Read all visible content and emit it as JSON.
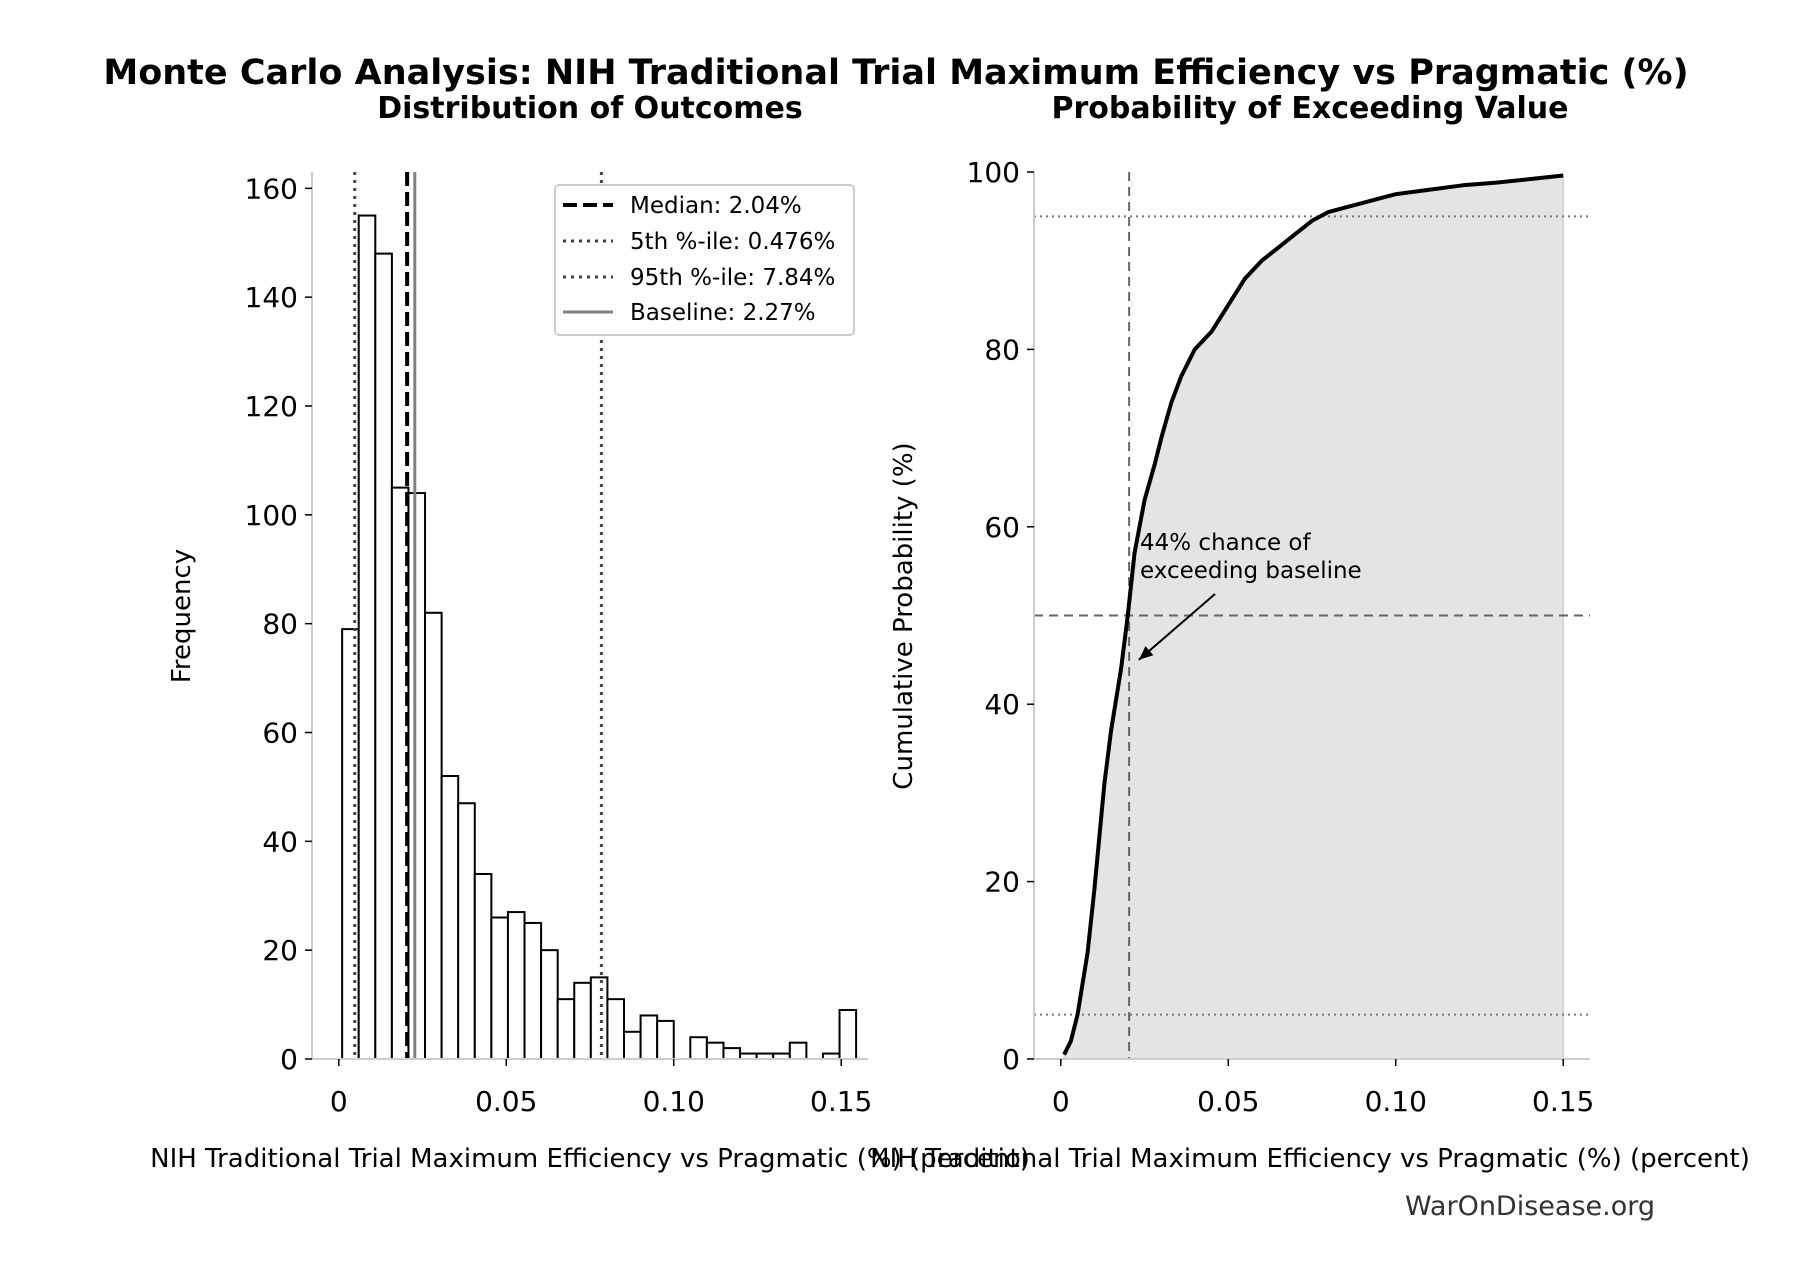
{
  "figure": {
    "suptitle": "Monte Carlo Analysis: NIH Traditional Trial Maximum Efficiency vs Pragmatic (%)",
    "watermark": "WarOnDisease.org"
  },
  "chart_data": [
    {
      "type": "bar",
      "title": "Distribution of Outcomes",
      "xlabel": "NIH Traditional Trial Maximum Efficiency vs Pragmatic (%) (percent)",
      "ylabel": "Frequency",
      "xlim": [
        -0.008,
        0.158
      ],
      "ylim": [
        0,
        163
      ],
      "xticks": [
        0,
        0.05,
        0.1,
        0.15
      ],
      "xtick_labels": [
        "0",
        "0.05",
        "0.10",
        "0.15"
      ],
      "yticks": [
        0,
        20,
        40,
        60,
        80,
        100,
        120,
        140,
        160
      ],
      "ytick_labels": [
        "0",
        "20",
        "40",
        "60",
        "80",
        "100",
        "120",
        "140",
        "160"
      ],
      "bin_start": 0.001,
      "bin_width": 0.00495,
      "values": [
        79,
        155,
        148,
        105,
        104,
        82,
        52,
        47,
        34,
        26,
        27,
        25,
        20,
        11,
        14,
        15,
        11,
        5,
        8,
        7,
        0,
        4,
        3,
        2,
        1,
        1,
        1,
        3,
        0,
        1,
        9
      ],
      "bar_fill": "#ffffff",
      "bar_edge": "#000000",
      "lines": [
        {
          "name": "median",
          "x": 0.0204,
          "style": "dashed",
          "color": "#000000"
        },
        {
          "name": "p5",
          "x": 0.00476,
          "style": "dotted",
          "color": "#444444"
        },
        {
          "name": "p95",
          "x": 0.0784,
          "style": "dotted",
          "color": "#444444"
        },
        {
          "name": "baseline",
          "x": 0.0227,
          "style": "solid",
          "color": "#808080"
        }
      ],
      "legend": {
        "position": "upper right",
        "entries": [
          {
            "label": "Median: 2.04%",
            "style": "dashed",
            "color": "#000000"
          },
          {
            "label": "5th %-ile: 0.476%",
            "style": "dotted",
            "color": "#444444"
          },
          {
            "label": "95th %-ile: 7.84%",
            "style": "dotted",
            "color": "#444444"
          },
          {
            "label": "Baseline: 2.27%",
            "style": "solid",
            "color": "#808080"
          }
        ]
      }
    },
    {
      "type": "line",
      "title": "Probability of Exceeding Value",
      "xlabel": "NIH Traditional Trial Maximum Efficiency vs Pragmatic (%) (percent)",
      "ylabel": "Cumulative Probability (%)",
      "xlim": [
        -0.008,
        0.158
      ],
      "ylim": [
        0,
        100
      ],
      "xticks": [
        0,
        0.05,
        0.1,
        0.15
      ],
      "xtick_labels": [
        "0",
        "0.05",
        "0.10",
        "0.15"
      ],
      "yticks": [
        0,
        20,
        40,
        60,
        80,
        100
      ],
      "ytick_labels": [
        "0",
        "20",
        "40",
        "60",
        "80",
        "100"
      ],
      "series": [
        {
          "x": [
            0.001,
            0.003,
            0.005,
            0.008,
            0.01,
            0.013,
            0.015,
            0.018,
            0.02,
            0.022,
            0.025,
            0.028,
            0.03,
            0.033,
            0.036,
            0.04,
            0.045,
            0.05,
            0.055,
            0.06,
            0.065,
            0.07,
            0.075,
            0.08,
            0.085,
            0.09,
            0.095,
            0.1,
            0.11,
            0.12,
            0.13,
            0.14,
            0.15
          ],
          "y": [
            0.5,
            2,
            5,
            12,
            19,
            31,
            37,
            44,
            50,
            57,
            63,
            67,
            70,
            74,
            77,
            80,
            82,
            85,
            88,
            90,
            91.5,
            93,
            94.5,
            95.5,
            96,
            96.5,
            97,
            97.5,
            98,
            98.5,
            98.8,
            99.2,
            99.6
          ],
          "color": "#000000"
        }
      ],
      "fill_color": "#e4e4e4",
      "reference_lines": {
        "vertical_x": 0.0204,
        "horizontal_dashed_y": 50,
        "horizontal_dotted_y": [
          5,
          95
        ]
      },
      "annotation": {
        "text_line1": "44% chance of",
        "text_line2": "exceeding baseline",
        "target": [
          0.0227,
          45
        ]
      }
    }
  ]
}
